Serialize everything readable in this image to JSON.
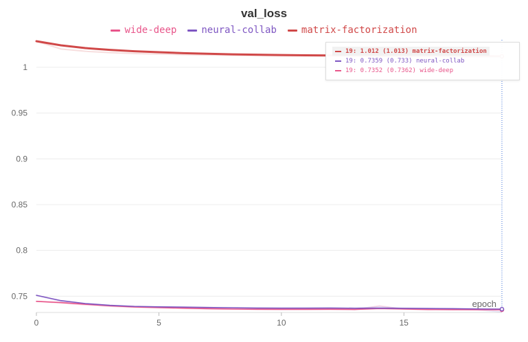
{
  "chart_data": {
    "type": "line",
    "title": "val_loss",
    "xlabel": "epoch",
    "ylabel": "",
    "xlim": [
      0,
      19
    ],
    "ylim": [
      0.733,
      1.03
    ],
    "xticks": [
      "0",
      "5",
      "10",
      "15"
    ],
    "yticks": [
      "0.75",
      "0.8",
      "0.85",
      "0.9",
      "0.95",
      "1"
    ],
    "grid": true,
    "legend_placement": "top-center",
    "x": [
      0,
      1,
      2,
      3,
      4,
      5,
      6,
      7,
      8,
      9,
      10,
      11,
      12,
      13,
      14,
      15,
      16,
      17,
      18,
      19
    ],
    "series": [
      {
        "name": "wide-deep",
        "color": "#e8558a",
        "values": [
          0.7444,
          0.7431,
          0.7412,
          0.7395,
          0.7383,
          0.7376,
          0.737,
          0.7364,
          0.736,
          0.7358,
          0.7357,
          0.7357,
          0.7358,
          0.7356,
          0.7365,
          0.736,
          0.7356,
          0.7354,
          0.7353,
          0.7352
        ],
        "raw": [
          0.7444,
          0.7425,
          0.7405,
          0.739,
          0.7378,
          0.7372,
          0.7366,
          0.7361,
          0.7357,
          0.7355,
          0.7354,
          0.7355,
          0.7356,
          0.7352,
          0.7395,
          0.7358,
          0.735,
          0.7352,
          0.7356,
          0.7362
        ]
      },
      {
        "name": "neural-collab",
        "color": "#7e56c2",
        "values": [
          0.751,
          0.7452,
          0.742,
          0.7401,
          0.7389,
          0.7384,
          0.7381,
          0.7377,
          0.7374,
          0.7371,
          0.737,
          0.737,
          0.7371,
          0.7369,
          0.737,
          0.7368,
          0.7366,
          0.7364,
          0.7361,
          0.7359
        ],
        "raw": [
          0.751,
          0.7445,
          0.7415,
          0.7397,
          0.7386,
          0.7382,
          0.7379,
          0.7375,
          0.7372,
          0.7369,
          0.7368,
          0.7369,
          0.7371,
          0.7367,
          0.7385,
          0.7366,
          0.7363,
          0.736,
          0.7352,
          0.733
        ]
      },
      {
        "name": "matrix-factorization",
        "color": "#d04848",
        "values": [
          1.0285,
          1.024,
          1.021,
          1.019,
          1.0175,
          1.0165,
          1.0155,
          1.0148,
          1.0142,
          1.0138,
          1.0134,
          1.0131,
          1.0129,
          1.0127,
          1.0125,
          1.0124,
          1.0123,
          1.0122,
          1.0121,
          1.012
        ],
        "raw": [
          1.0285,
          1.02,
          1.0175,
          1.016,
          1.015,
          1.0145,
          1.0138,
          1.0134,
          1.013,
          1.0127,
          1.0125,
          1.0124,
          1.0123,
          1.0122,
          1.0121,
          1.0122,
          1.0124,
          1.0125,
          1.0127,
          1.013
        ]
      }
    ],
    "tooltip": {
      "rows": [
        {
          "series": "matrix-factorization",
          "text": "19: 1.012 (1.013) matrix-factorization",
          "color": "#d04848",
          "highlight": true
        },
        {
          "series": "neural-collab",
          "text": "19: 0.7359 (0.733) neural-collab",
          "color": "#7e56c2",
          "highlight": false
        },
        {
          "series": "wide-deep",
          "text": "19: 0.7352 (0.7362) wide-deep",
          "color": "#e8558a",
          "highlight": false
        }
      ]
    },
    "hover_epoch": 19
  },
  "legend": [
    {
      "label": "wide-deep",
      "color": "#e8558a"
    },
    {
      "label": "neural-collab",
      "color": "#7e56c2"
    },
    {
      "label": "matrix-factorization",
      "color": "#d04848"
    }
  ]
}
